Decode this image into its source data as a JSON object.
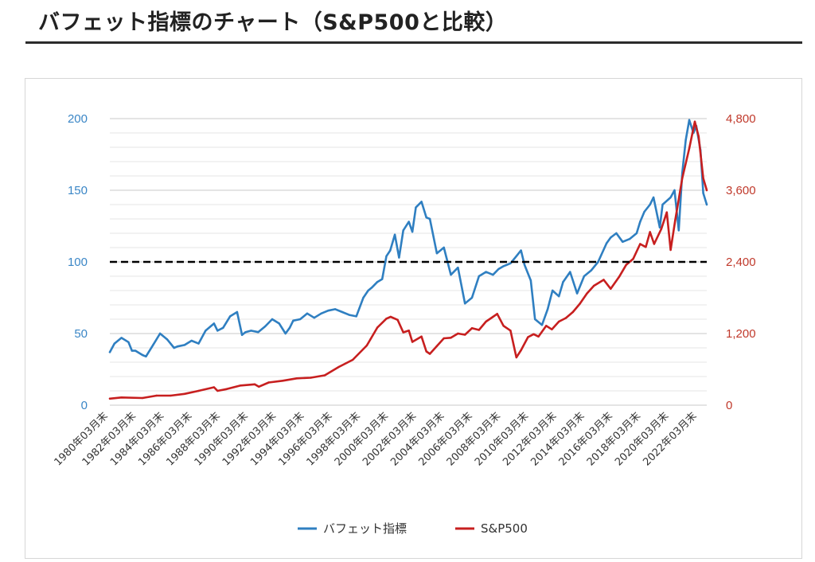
{
  "page": {
    "title": "バフェット指標のチャート（S&P500と比較）"
  },
  "chart_data": {
    "type": "line",
    "title": "",
    "xlabel": "",
    "ylabel": "",
    "ylabel_right": "",
    "x_range": [
      1980.17,
      2022.75
    ],
    "ylim": [
      0,
      200
    ],
    "ylim_right": [
      0,
      4800
    ],
    "y_ticks": [
      0,
      50,
      100,
      150,
      200
    ],
    "y_tick_labels": [
      "0",
      "50",
      "100",
      "150",
      "200"
    ],
    "y_right_ticks": [
      0,
      1200,
      2400,
      3600,
      4800
    ],
    "y_right_tick_labels": [
      "0",
      "1,200",
      "2,400",
      "3,600",
      "4,800"
    ],
    "x_tick_values": [
      1980.17,
      1982.17,
      1984.17,
      1986.17,
      1988.17,
      1990.17,
      1992.17,
      1994.17,
      1996.17,
      1998.17,
      2000.17,
      2002.17,
      2004.17,
      2006.17,
      2008.17,
      2010.17,
      2012.17,
      2014.17,
      2016.17,
      2018.17,
      2020.17,
      2022.17
    ],
    "x_tick_labels": [
      "1980年03月末",
      "1982年03月末",
      "1984年03月末",
      "1986年03月末",
      "1988年03月末",
      "1990年03月末",
      "1992年03月末",
      "1994年03月末",
      "1996年03月末",
      "1998年03月末",
      "2000年03月末",
      "2002年03月末",
      "2004年03月末",
      "2006年03月末",
      "2008年03月末",
      "2010年03月末",
      "2012年03月末",
      "2014年03月末",
      "2016年03月末",
      "2018年03月末",
      "2020年03月末",
      "2022年03月末"
    ],
    "reference_line": {
      "y": 100,
      "style": "dashed",
      "color": "#000000"
    },
    "grid": true,
    "legend_position": "bottom",
    "series": [
      {
        "name": "バフェット指標",
        "axis": "left",
        "color": "#2f7fc1",
        "x": [
          1980.17,
          1980.5,
          1981.0,
          1981.5,
          1981.75,
          1982.0,
          1982.5,
          1982.75,
          1983.25,
          1983.75,
          1984.25,
          1984.75,
          1985.0,
          1985.5,
          1986.0,
          1986.5,
          1987.0,
          1987.6,
          1987.85,
          1988.25,
          1988.75,
          1989.25,
          1989.6,
          1989.85,
          1990.25,
          1990.75,
          1991.25,
          1991.75,
          1992.25,
          1992.7,
          1993.0,
          1993.25,
          1993.75,
          1994.25,
          1994.75,
          1995.25,
          1995.75,
          1996.25,
          1996.75,
          1997.25,
          1997.75,
          1998.25,
          1998.6,
          1998.85,
          1999.25,
          1999.6,
          1999.9,
          2000.17,
          2000.5,
          2000.8,
          2001.1,
          2001.5,
          2001.75,
          2002.0,
          2002.4,
          2002.75,
          2003.0,
          2003.5,
          2004.0,
          2004.5,
          2005.0,
          2005.5,
          2006.0,
          2006.5,
          2007.0,
          2007.5,
          2007.9,
          2008.25,
          2008.75,
          2009.17,
          2009.5,
          2009.75,
          2010.2,
          2010.5,
          2011.0,
          2011.4,
          2011.75,
          2012.2,
          2012.5,
          2013.0,
          2013.5,
          2014.0,
          2014.5,
          2015.0,
          2015.6,
          2015.9,
          2016.3,
          2016.75,
          2017.25,
          2017.75,
          2018.0,
          2018.3,
          2018.7,
          2018.95,
          2019.4,
          2019.6,
          2020.17,
          2020.45,
          2020.75,
          2021.0,
          2021.25,
          2021.5,
          2021.8,
          2022.0,
          2022.3,
          2022.5,
          2022.75
        ],
        "values": [
          37,
          43,
          47,
          44,
          38,
          38,
          35,
          34,
          42,
          50,
          46,
          40,
          41,
          42,
          45,
          43,
          52,
          57,
          52,
          54,
          62,
          65,
          49,
          51,
          52,
          51,
          55,
          60,
          57,
          50,
          54,
          59,
          60,
          64,
          61,
          64,
          66,
          67,
          65,
          63,
          62,
          75,
          80,
          82,
          86,
          88,
          104,
          108,
          119,
          103,
          122,
          128,
          121,
          138,
          142,
          131,
          130,
          106,
          110,
          91,
          96,
          71,
          75,
          90,
          93,
          91,
          95,
          97,
          99,
          104,
          108,
          98,
          87,
          60,
          56,
          67,
          80,
          76,
          86,
          93,
          78,
          90,
          94,
          100,
          113,
          117,
          120,
          114,
          116,
          120,
          128,
          135,
          140,
          145,
          124,
          140,
          145,
          150,
          122,
          162,
          185,
          199,
          190,
          195,
          178,
          148,
          140
        ]
      },
      {
        "name": "S&P500",
        "axis": "right",
        "color": "#c71f1f",
        "x": [
          1980.17,
          1981.0,
          1982.5,
          1983.5,
          1984.5,
          1985.5,
          1986.5,
          1987.6,
          1987.85,
          1988.5,
          1989.5,
          1990.5,
          1990.8,
          1991.5,
          1992.5,
          1993.5,
          1994.5,
          1995.5,
          1996.5,
          1997.5,
          1998.5,
          1998.75,
          1999.25,
          1999.9,
          2000.2,
          2000.7,
          2001.1,
          2001.5,
          2001.75,
          2002.4,
          2002.75,
          2003.0,
          2003.5,
          2004.0,
          2004.5,
          2005.0,
          2005.5,
          2006.0,
          2006.5,
          2007.0,
          2007.5,
          2007.8,
          2008.25,
          2008.75,
          2009.17,
          2009.5,
          2010.0,
          2010.4,
          2010.75,
          2011.3,
          2011.7,
          2012.2,
          2012.7,
          2013.2,
          2013.7,
          2014.2,
          2014.7,
          2015.4,
          2015.9,
          2016.5,
          2017.0,
          2017.5,
          2018.0,
          2018.4,
          2018.7,
          2019.0,
          2019.5,
          2019.9,
          2020.17,
          2020.5,
          2021.0,
          2021.5,
          2021.9,
          2022.17,
          2022.5,
          2022.75
        ],
        "values": [
          110,
          130,
          120,
          160,
          160,
          190,
          240,
          300,
          240,
          270,
          330,
          350,
          310,
          380,
          410,
          450,
          460,
          500,
          640,
          760,
          1000,
          1100,
          1300,
          1450,
          1480,
          1430,
          1220,
          1250,
          1060,
          1150,
          900,
          860,
          990,
          1120,
          1130,
          1200,
          1180,
          1290,
          1260,
          1400,
          1480,
          1530,
          1330,
          1250,
          800,
          920,
          1140,
          1190,
          1150,
          1330,
          1270,
          1400,
          1460,
          1560,
          1700,
          1870,
          2000,
          2100,
          1950,
          2150,
          2350,
          2450,
          2700,
          2650,
          2900,
          2700,
          2950,
          3230,
          2600,
          3100,
          3800,
          4300,
          4750,
          4500,
          3800,
          3600
        ]
      }
    ]
  }
}
